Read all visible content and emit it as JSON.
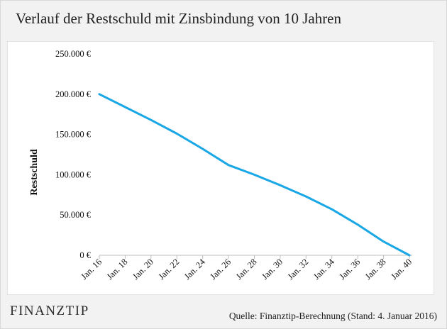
{
  "title": "Verlauf der Restschuld  mit Zinsbindung  von 10 Jahren",
  "brand": "FINANZTIP",
  "source": "Quelle: Finanztip-Berechnung (Stand: 4. Januar 2016)",
  "colors": {
    "line": "#1aa7e6",
    "axis": "#bfbfbf",
    "text": "#111111"
  },
  "chart_data": {
    "type": "line",
    "title": "Verlauf der Restschuld  mit Zinsbindung  von 10 Jahren",
    "xlabel": "",
    "ylabel": "Restschuld",
    "ylim": [
      0,
      250000
    ],
    "grid": false,
    "yticks": [
      {
        "value": 0,
        "label": "0 €"
      },
      {
        "value": 50000,
        "label": "50.000 €"
      },
      {
        "value": 100000,
        "label": "100.000 €"
      },
      {
        "value": 150000,
        "label": "150.000 €"
      },
      {
        "value": 200000,
        "label": "200.000 €"
      },
      {
        "value": 250000,
        "label": "250.000 €"
      }
    ],
    "xticks": [
      "Jan. 16",
      "Jan. 18",
      "Jan. 20",
      "Jan. 22",
      "Jan. 24",
      "Jan. 26",
      "Jan. 28",
      "Jan. 30",
      "Jan. 32",
      "Jan. 34",
      "Jan. 36",
      "Jan. 38",
      "Jan. 40"
    ],
    "series": [
      {
        "x": [
          "Jan. 16",
          "Jan. 18",
          "Jan. 20",
          "Jan. 22",
          "Jan. 24",
          "Jan. 26",
          "Jan. 28",
          "Jan. 30",
          "Jan. 32",
          "Jan. 34",
          "Jan. 36",
          "Jan. 38",
          "Jan. 40"
        ],
        "values": [
          200000,
          184000,
          168000,
          151000,
          132000,
          112000,
          100000,
          87000,
          73000,
          57000,
          38000,
          17000,
          0
        ]
      }
    ]
  }
}
